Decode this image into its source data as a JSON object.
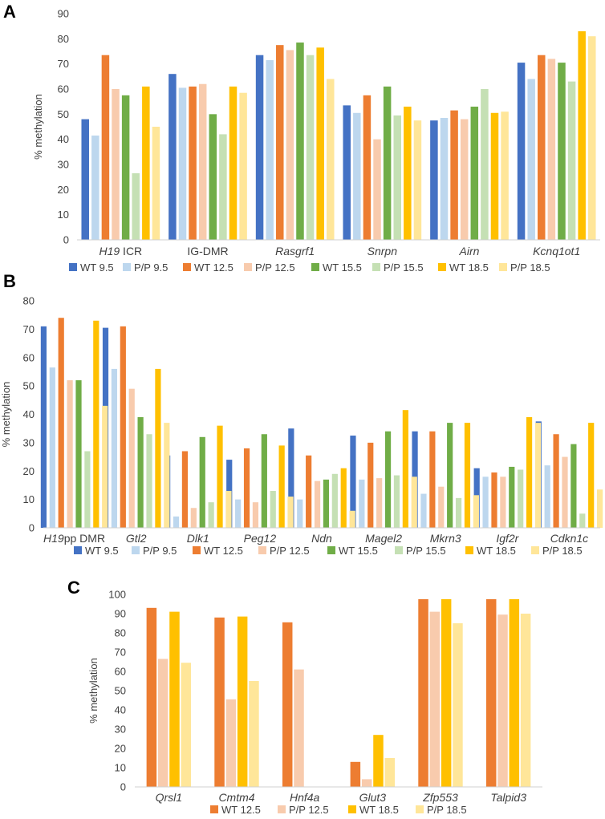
{
  "colors": {
    "WT 9.5": "#4472C4",
    "P/P 9.5": "#BDD7EE",
    "WT 12.5": "#ED7D31",
    "P/P 12.5": "#F8CBAD",
    "WT 15.5": "#70AD47",
    "P/P 15.5": "#C5E0B4",
    "WT 18.5": "#FFC000",
    "P/P 18.5": "#FFE699"
  },
  "chart_data": [
    {
      "panel": "A",
      "type": "bar",
      "ylabel": "% methylation",
      "ylim": [
        0,
        90
      ],
      "yticks": [
        0,
        10,
        20,
        30,
        40,
        50,
        60,
        70,
        80,
        90
      ],
      "categories": [
        {
          "label": "H19",
          "suffix": " ICR",
          "italic": true
        },
        {
          "label": "IG-DMR",
          "suffix": "",
          "italic": false
        },
        {
          "label": "Rasgrf1",
          "suffix": "",
          "italic": true
        },
        {
          "label": "Snrpn",
          "suffix": "",
          "italic": true
        },
        {
          "label": "Airn",
          "suffix": "",
          "italic": true
        },
        {
          "label": "Kcnq1ot1",
          "suffix": "",
          "italic": true
        }
      ],
      "series": [
        {
          "name": "WT 9.5",
          "values": [
            48,
            66,
            73.5,
            53.5,
            47.5,
            70.5
          ]
        },
        {
          "name": "P/P 9.5",
          "values": [
            41.5,
            60.5,
            71.5,
            50.5,
            48.5,
            64
          ]
        },
        {
          "name": "WT 12.5",
          "values": [
            73.5,
            61,
            77.5,
            57.5,
            51.5,
            73.5
          ]
        },
        {
          "name": "P/P 12.5",
          "values": [
            60,
            62,
            75.5,
            40,
            48,
            72
          ]
        },
        {
          "name": "WT 15.5",
          "values": [
            57.5,
            50,
            78.5,
            61,
            53,
            70.5
          ]
        },
        {
          "name": "P/P 15.5",
          "values": [
            26.5,
            42,
            73.5,
            49.5,
            60,
            63
          ]
        },
        {
          "name": "WT 18.5",
          "values": [
            61,
            61,
            76.5,
            53,
            50.5,
            83
          ]
        },
        {
          "name": "P/P 18.5",
          "values": [
            45,
            58.5,
            64,
            47.5,
            51,
            81
          ]
        }
      ]
    },
    {
      "panel": "B",
      "type": "bar",
      "ylabel": "% methylation",
      "ylim": [
        0,
        80
      ],
      "yticks": [
        0,
        10,
        20,
        30,
        40,
        50,
        60,
        70,
        80
      ],
      "categories": [
        {
          "label": "H19",
          "suffix": "pp DMR",
          "italic": true
        },
        {
          "label": "Gtl2",
          "suffix": "",
          "italic": true
        },
        {
          "label": "Dlk1",
          "suffix": "",
          "italic": true
        },
        {
          "label": "Peg12",
          "suffix": "",
          "italic": true
        },
        {
          "label": "Ndn",
          "suffix": "",
          "italic": true
        },
        {
          "label": "Magel2",
          "suffix": "",
          "italic": true
        },
        {
          "label": "Mkrn3",
          "suffix": "",
          "italic": true
        },
        {
          "label": "Igf2r",
          "suffix": "",
          "italic": true
        },
        {
          "label": "Cdkn1c",
          "suffix": "",
          "italic": true
        }
      ],
      "series": [
        {
          "name": "WT 9.5",
          "values": [
            71,
            70.5,
            25.5,
            24,
            35,
            32.5,
            34,
            21,
            37.5
          ]
        },
        {
          "name": "P/P 9.5",
          "values": [
            56.5,
            56,
            4,
            10,
            10,
            17,
            12,
            18,
            22
          ]
        },
        {
          "name": "WT 12.5",
          "values": [
            74,
            71,
            27,
            28,
            25.5,
            30,
            34,
            19.5,
            33
          ]
        },
        {
          "name": "P/P 12.5",
          "values": [
            52,
            49,
            7,
            9,
            16.5,
            17.5,
            14.5,
            18,
            25
          ]
        },
        {
          "name": "WT 15.5",
          "values": [
            52,
            39,
            32,
            33,
            17,
            34,
            37,
            21.5,
            29.5
          ]
        },
        {
          "name": "P/P 15.5",
          "values": [
            27,
            33,
            9,
            13,
            19,
            18.5,
            10.5,
            20.5,
            5
          ]
        },
        {
          "name": "WT 18.5",
          "values": [
            73,
            56,
            36,
            29,
            21,
            41.5,
            37,
            39,
            37
          ]
        },
        {
          "name": "P/P 18.5",
          "values": [
            43,
            37,
            13,
            11,
            6,
            18,
            11.5,
            37,
            13.5
          ]
        }
      ]
    },
    {
      "panel": "C",
      "type": "bar",
      "ylabel": "% methylation",
      "ylim": [
        0,
        100
      ],
      "yticks": [
        0,
        10,
        20,
        30,
        40,
        50,
        60,
        70,
        80,
        90,
        100
      ],
      "categories": [
        {
          "label": "Qrsl1",
          "suffix": "",
          "italic": true
        },
        {
          "label": "Cmtm4",
          "suffix": "",
          "italic": true
        },
        {
          "label": "Hnf4a",
          "suffix": "",
          "italic": true
        },
        {
          "label": "Glut3",
          "suffix": "",
          "italic": true
        },
        {
          "label": "Zfp553",
          "suffix": "",
          "italic": true
        },
        {
          "label": "Talpid3",
          "suffix": "",
          "italic": true
        }
      ],
      "series": [
        {
          "name": "WT 12.5",
          "values": [
            93,
            88,
            85.5,
            13,
            97.5,
            97.5
          ]
        },
        {
          "name": "P/P 12.5",
          "values": [
            66.5,
            45.5,
            61,
            4,
            91,
            89.5
          ]
        },
        {
          "name": "WT 18.5",
          "values": [
            91,
            88.5,
            null,
            27,
            97.5,
            97.5
          ]
        },
        {
          "name": "P/P 18.5",
          "values": [
            64.5,
            55,
            null,
            15,
            85,
            90
          ]
        }
      ]
    }
  ]
}
